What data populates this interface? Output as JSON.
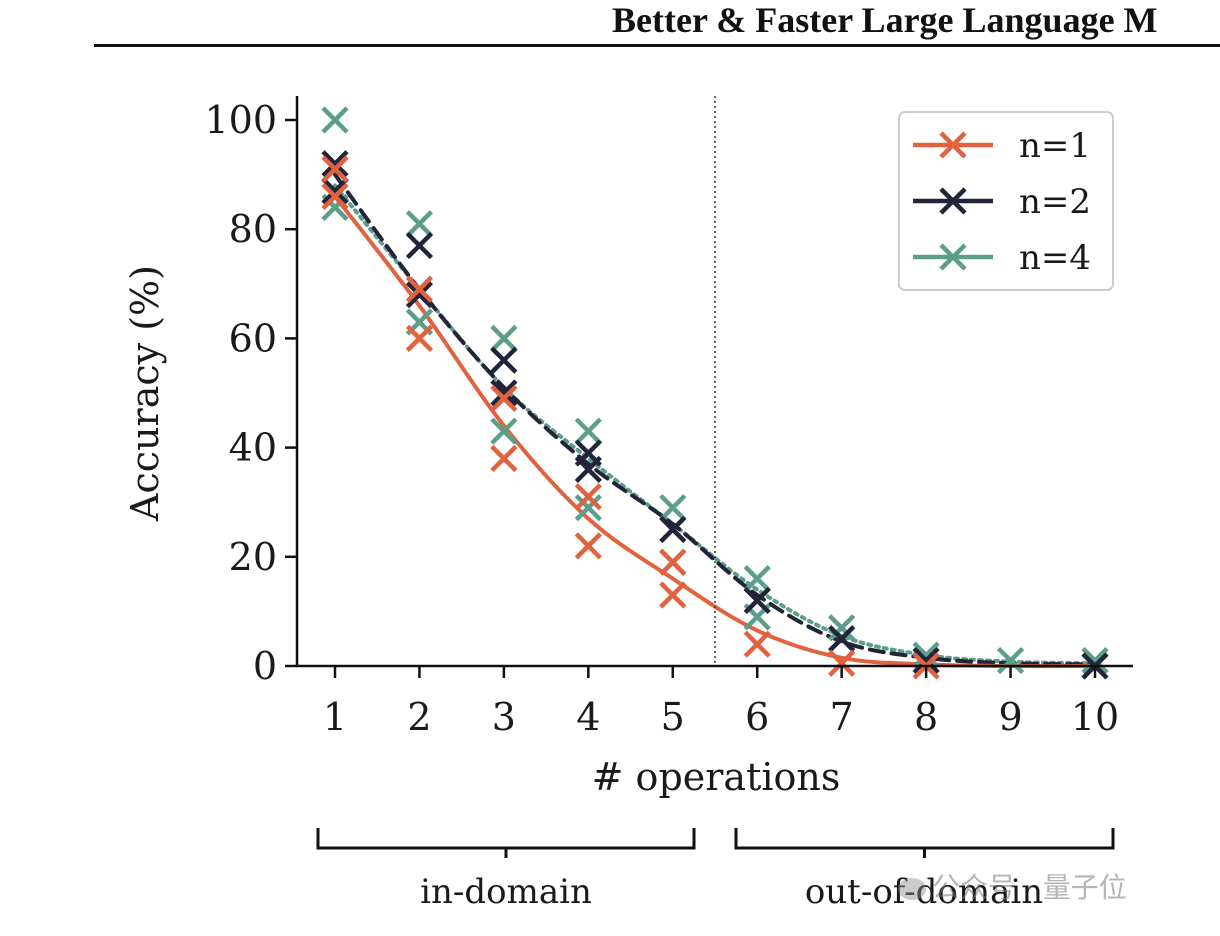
{
  "header": {
    "title": "Better & Faster Large Language M"
  },
  "watermark": {
    "text": "公众号 · 量子位",
    "icon": "wechat-icon"
  },
  "regions": {
    "left": "in-domain",
    "right": "out-of-domain"
  },
  "chart_data": {
    "type": "line",
    "title": "",
    "xlabel": "# operations",
    "ylabel": "Accuracy (%)",
    "x": [
      1,
      2,
      3,
      4,
      5,
      6,
      7,
      8,
      9,
      10
    ],
    "xlim": [
      0.55,
      10.45
    ],
    "ylim": [
      0,
      100
    ],
    "yticks": [
      0,
      20,
      40,
      60,
      80,
      100
    ],
    "xticks": [
      1,
      2,
      3,
      4,
      5,
      6,
      7,
      8,
      9,
      10
    ],
    "divider_x": 5.5,
    "legend": "top-right",
    "grid": false,
    "series": [
      {
        "name": "n=1",
        "color": "#e0623f",
        "dash": "solid",
        "line": [
          86,
          66,
          44,
          27,
          16,
          6.5,
          1.5,
          0.3,
          0,
          0
        ],
        "points": [
          [
            1,
            91
          ],
          [
            1,
            86
          ],
          [
            2,
            60
          ],
          [
            2,
            69
          ],
          [
            3,
            38
          ],
          [
            3,
            49
          ],
          [
            4,
            22
          ],
          [
            4,
            31
          ],
          [
            5,
            13
          ],
          [
            5,
            19
          ],
          [
            6,
            4
          ],
          [
            7,
            0.5
          ],
          [
            8,
            0
          ]
        ]
      },
      {
        "name": "n=2",
        "color": "#22253a",
        "dash": "dashed",
        "line": [
          90,
          69,
          51,
          37,
          26,
          13,
          4.5,
          1.5,
          0.5,
          0.3
        ],
        "points": [
          [
            1,
            92
          ],
          [
            1,
            87
          ],
          [
            2,
            77
          ],
          [
            2,
            68
          ],
          [
            3,
            56
          ],
          [
            3,
            50
          ],
          [
            4,
            39
          ],
          [
            4,
            36
          ],
          [
            5,
            25
          ],
          [
            6,
            12
          ],
          [
            7,
            5
          ],
          [
            8,
            1
          ],
          [
            10,
            0
          ]
        ]
      },
      {
        "name": "n=4",
        "color": "#5d9e8a",
        "dash": "dotted",
        "line": [
          88,
          69,
          51,
          38,
          26,
          14,
          5.5,
          2,
          0.8,
          0.5
        ],
        "points": [
          [
            1,
            100
          ],
          [
            1,
            84
          ],
          [
            2,
            81
          ],
          [
            2,
            63
          ],
          [
            3,
            60
          ],
          [
            3,
            43
          ],
          [
            4,
            43
          ],
          [
            4,
            29
          ],
          [
            5,
            29
          ],
          [
            5,
            19
          ],
          [
            6,
            16
          ],
          [
            6,
            9
          ],
          [
            7,
            7
          ],
          [
            7,
            5
          ],
          [
            8,
            2
          ],
          [
            9,
            1
          ],
          [
            10,
            1
          ]
        ]
      }
    ]
  }
}
